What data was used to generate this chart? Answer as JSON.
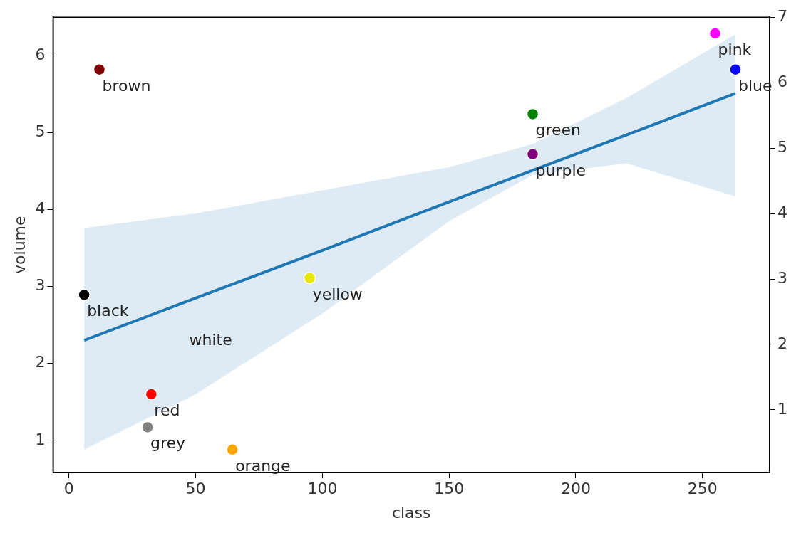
{
  "chart_data": {
    "type": "scatter",
    "xlabel": "class",
    "ylabel": "volume",
    "xlim": [
      -6.3,
      276.5
    ],
    "xticks": [
      0,
      50,
      100,
      150,
      200,
      250
    ],
    "ylim": [
      0.58,
      6.5
    ],
    "yticks": [
      1,
      2,
      3,
      4,
      5,
      6
    ],
    "y2lim": [
      0.04,
      7.0
    ],
    "y2ticks": [
      1,
      2,
      3,
      4,
      5,
      6,
      7
    ],
    "grid": false,
    "legend": false,
    "series": [
      {
        "marker": "circle",
        "x": [
          12,
          6,
          32.5,
          31,
          64.5,
          95,
          183,
          183,
          255,
          263
        ],
        "values": [
          5.82,
          2.89,
          1.6,
          1.17,
          0.88,
          3.11,
          5.24,
          4.72,
          6.29,
          5.82
        ],
        "colors": [
          "#800000",
          "#000000",
          "#ff0000",
          "#808080",
          "#ffa500",
          "#e6e600",
          "#008000",
          "#800080",
          "#ff00ff",
          "#0000ff"
        ]
      },
      {
        "type": "line",
        "marker": "none",
        "color": "#1f77b4",
        "x": [
          6,
          50,
          100,
          150,
          183,
          220,
          263
        ],
        "values": [
          2.3,
          2.85,
          3.47,
          4.1,
          4.51,
          4.97,
          5.51
        ],
        "lower": [
          0.88,
          1.6,
          2.65,
          3.85,
          4.45,
          4.6,
          4.17
        ],
        "upper": [
          3.76,
          3.95,
          4.25,
          4.55,
          4.85,
          5.45,
          6.28
        ]
      }
    ],
    "annotations": [
      {
        "text": "brown",
        "x": 12,
        "y": 5.82
      },
      {
        "text": "pink",
        "x": 255,
        "y": 6.29
      },
      {
        "text": "blue",
        "x": 263,
        "y": 5.82
      },
      {
        "text": "green",
        "x": 183,
        "y": 5.24
      },
      {
        "text": "purple",
        "x": 183,
        "y": 4.72
      },
      {
        "text": "yellow",
        "x": 95,
        "y": 3.11
      },
      {
        "text": "black",
        "x": 6,
        "y": 2.89
      },
      "white",
      {
        "text": "red",
        "x": 32.5,
        "y": 1.6
      },
      {
        "text": "grey",
        "x": 31,
        "y": 1.17
      },
      {
        "text": "orange",
        "x": 64.5,
        "y": 0.88
      }
    ]
  }
}
